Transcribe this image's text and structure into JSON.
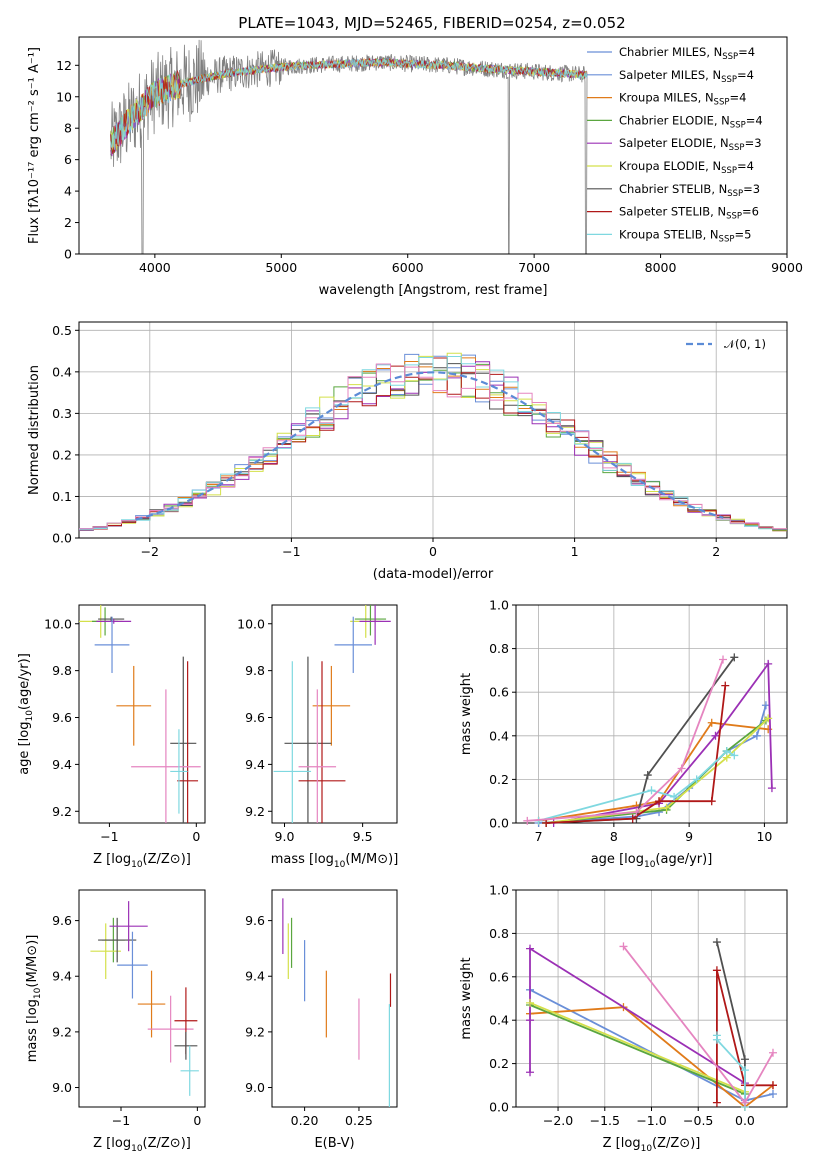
{
  "figure_title": "PLATE=1043, MJD=52465, FIBERID=0254, z=0.052",
  "colors": {
    "Chabrier MILES": "#6a8fd8",
    "Salpeter MILES": "#6a8fd8",
    "Kroupa MILES": "#e07b1a",
    "Chabrier ELODIE": "#5aa63f",
    "Salpeter ELODIE": "#9b30b5",
    "Kroupa ELODIE": "#d4e04a",
    "Chabrier STELIB": "#505050",
    "Salpeter STELIB": "#b01818",
    "Kroupa STELIB": "#7fd8e0",
    "pink": "#e585c0",
    "data": "#808080"
  },
  "chart_data": [
    {
      "id": "spectrum",
      "type": "line",
      "title": "PLATE=1043, MJD=52465, FIBERID=0254, z=0.052",
      "xlabel": "wavelength [Angstrom, rest frame]",
      "ylabel": "Flux [fλ10⁻¹⁷ erg cm⁻² s⁻¹ A⁻¹]",
      "xlim": [
        3400,
        9000
      ],
      "ylim": [
        0,
        13.8
      ],
      "xticks": [
        "4000",
        "5000",
        "6000",
        "7000",
        "8000",
        "9000"
      ],
      "yticks": [
        "0",
        "2",
        "4",
        "6",
        "8",
        "10",
        "12"
      ],
      "grid": false,
      "legend_position": "top-right",
      "legend": [
        "Chabrier MILES, N_SSP=4",
        "Salpeter MILES, N_SSP=4",
        "Kroupa MILES, N_SSP=4",
        "Chabrier ELODIE, N_SSP=4",
        "Salpeter ELODIE, N_SSP=3",
        "Kroupa ELODIE, N_SSP=4",
        "Chabrier STELIB, N_SSP=3",
        "Salpeter STELIB, N_SSP=6",
        "Kroupa STELIB, N_SSP=5"
      ],
      "legend_text": [
        "Chabrier MILES, N",
        "Salpeter MILES, N",
        "Kroupa MILES, N",
        "Chabrier ELODIE, N",
        "Salpeter ELODIE, N",
        "Kroupa ELODIE, N",
        "Chabrier STELIB, N",
        "Salpeter STELIB, N",
        "Kroupa STELIB, N"
      ],
      "legend_sub": "SSP",
      "legend_counts": [
        "=4",
        "=4",
        "=4",
        "=4",
        "=3",
        "=4",
        "=3",
        "=6",
        "=5"
      ],
      "continuum": {
        "x": [
          3650,
          3800,
          4000,
          4200,
          4400,
          4600,
          4800,
          5000,
          5200,
          5500,
          5800,
          6000,
          6300,
          6600,
          7000,
          7400
        ],
        "y": [
          7.0,
          8.5,
          10.2,
          10.8,
          11.2,
          11.5,
          11.7,
          11.9,
          12.0,
          12.1,
          12.2,
          12.1,
          12.0,
          11.8,
          11.6,
          11.4
        ]
      }
    },
    {
      "id": "residuals",
      "type": "histogram",
      "xlabel": "(data-model)/error",
      "ylabel": "Normed distribution",
      "xlim": [
        -2.5,
        2.5
      ],
      "ylim": [
        0,
        0.52
      ],
      "xticks": [
        "−2",
        "−1",
        "0",
        "1",
        "2"
      ],
      "yticks": [
        "0.0",
        "0.1",
        "0.2",
        "0.3",
        "0.4",
        "0.5"
      ],
      "grid": true,
      "legend_position": "top-right",
      "legend": [
        "𝒩(0, 1)"
      ],
      "bin_width": 0.1
    },
    {
      "id": "age_vs_Z",
      "type": "errorbar",
      "xlabel": "Z [log10(Z/Z⊙)]",
      "ylabel": "age [log10(age/yr)]",
      "xlim": [
        -1.35,
        0.1
      ],
      "ylim": [
        9.15,
        10.08
      ],
      "xticks": [
        "−1",
        "0"
      ],
      "yticks": [
        "9.2",
        "9.4",
        "9.6",
        "9.8",
        "10.0"
      ],
      "points": [
        {
          "model": "Kroupa ELODIE",
          "x": -1.1,
          "y": 10.01,
          "xerr": 0.25,
          "yerr": 0.07
        },
        {
          "model": "Chabrier ELODIE",
          "x": -1.05,
          "y": 10.01,
          "xerr": 0.15,
          "yerr": 0.06
        },
        {
          "model": "Chabrier STELIB",
          "x": -0.98,
          "y": 10.02,
          "xerr": 0.15,
          "yerr": 0.01
        },
        {
          "model": "Salpeter ELODIE",
          "x": -0.95,
          "y": 10.01,
          "xerr": 0.2,
          "yerr": 0.01
        },
        {
          "model": "Chabrier MILES",
          "x": -0.97,
          "y": 9.91,
          "xerr": 0.2,
          "yerr": 0.12
        },
        {
          "model": "Kroupa MILES",
          "x": -0.72,
          "y": 9.65,
          "xerr": 0.2,
          "yerr": 0.17
        },
        {
          "model": "Chabrier STELIB",
          "x": -0.15,
          "y": 9.49,
          "xerr": 0.15,
          "yerr": 0.37
        },
        {
          "model": "Salpeter STELIB",
          "x": -0.1,
          "y": 9.33,
          "xerr": 0.12,
          "yerr": 0.51
        },
        {
          "model": "pink",
          "x": -0.35,
          "y": 9.39,
          "xerr": 0.4,
          "yerr": 0.33
        },
        {
          "model": "Kroupa STELIB",
          "x": -0.2,
          "y": 9.37,
          "xerr": 0.1,
          "yerr": 0.18
        }
      ]
    },
    {
      "id": "age_vs_mass",
      "type": "errorbar",
      "xlabel": "mass [log10(M/M⊙)]",
      "xlim": [
        8.92,
        9.72
      ],
      "ylim": [
        9.15,
        10.08
      ],
      "xticks": [
        "9.0",
        "9.5"
      ],
      "yticks": [
        "9.2",
        "9.4",
        "9.6",
        "9.8",
        "10.0"
      ],
      "points": [
        {
          "model": "Kroupa ELODIE",
          "x": 9.52,
          "y": 10.01,
          "xerr": 0.1,
          "yerr": 0.07
        },
        {
          "model": "Chabrier ELODIE",
          "x": 9.55,
          "y": 10.02,
          "xerr": 0.1,
          "yerr": 0.07
        },
        {
          "model": "Salpeter ELODIE",
          "x": 9.58,
          "y": 10.01,
          "xerr": 0.1,
          "yerr": 0.1
        },
        {
          "model": "Chabrier MILES",
          "x": 9.44,
          "y": 9.91,
          "xerr": 0.12,
          "yerr": 0.12
        },
        {
          "model": "Kroupa MILES",
          "x": 9.3,
          "y": 9.65,
          "xerr": 0.12,
          "yerr": 0.17
        },
        {
          "model": "Chabrier STELIB",
          "x": 9.15,
          "y": 9.49,
          "xerr": 0.15,
          "yerr": 0.37
        },
        {
          "model": "Salpeter STELIB",
          "x": 9.24,
          "y": 9.33,
          "xerr": 0.15,
          "yerr": 0.51
        },
        {
          "model": "pink",
          "x": 9.21,
          "y": 9.39,
          "xerr": 0.12,
          "yerr": 0.33
        },
        {
          "model": "Kroupa STELIB",
          "x": 9.05,
          "y": 9.37,
          "xerr": 0.12,
          "yerr": 0.47
        }
      ]
    },
    {
      "id": "weight_vs_age",
      "type": "line",
      "xlabel": "age [log10(age/yr)]",
      "ylabel": "mass weight",
      "xlim": [
        6.7,
        10.3
      ],
      "ylim": [
        0,
        1.0
      ],
      "xticks": [
        "7",
        "8",
        "9",
        "10"
      ],
      "yticks": [
        "0.0",
        "0.2",
        "0.4",
        "0.6",
        "0.8",
        "1.0"
      ],
      "grid": true,
      "series": [
        {
          "model": "Chabrier MILES",
          "x": [
            7.0,
            8.3,
            8.6,
            9.0,
            9.5,
            9.9,
            10.02
          ],
          "y": [
            0.0,
            0.03,
            0.05,
            0.16,
            0.33,
            0.4,
            0.54
          ]
        },
        {
          "model": "Kroupa MILES",
          "x": [
            7.0,
            8.3,
            8.6,
            9.3,
            10.05
          ],
          "y": [
            0.01,
            0.08,
            0.1,
            0.46,
            0.43
          ]
        },
        {
          "model": "Chabrier ELODIE",
          "x": [
            7.1,
            8.7,
            9.5,
            10.02
          ],
          "y": [
            0.0,
            0.06,
            0.33,
            0.47
          ]
        },
        {
          "model": "Salpeter ELODIE",
          "x": [
            7.2,
            8.6,
            9.35,
            10.05,
            10.1
          ],
          "y": [
            0.0,
            0.09,
            0.4,
            0.73,
            0.16
          ]
        },
        {
          "model": "Kroupa ELODIE",
          "x": [
            7.1,
            8.7,
            9.5,
            10.05
          ],
          "y": [
            0.0,
            0.07,
            0.3,
            0.48
          ]
        },
        {
          "model": "Chabrier STELIB",
          "x": [
            7.1,
            8.3,
            8.45,
            9.6
          ],
          "y": [
            0.0,
            0.02,
            0.22,
            0.76
          ]
        },
        {
          "model": "Salpeter STELIB",
          "x": [
            7.1,
            8.25,
            8.6,
            9.3,
            9.48
          ],
          "y": [
            0.0,
            0.02,
            0.1,
            0.1,
            0.63
          ]
        },
        {
          "model": "Kroupa STELIB",
          "x": [
            7.0,
            8.5,
            8.8,
            9.1,
            9.5,
            9.6
          ],
          "y": [
            0.01,
            0.15,
            0.12,
            0.2,
            0.33,
            0.31
          ]
        },
        {
          "model": "pink",
          "x": [
            6.85,
            8.3,
            8.9,
            9.45
          ],
          "y": [
            0.01,
            0.05,
            0.25,
            0.75
          ]
        }
      ]
    },
    {
      "id": "mass_vs_Z",
      "type": "errorbar",
      "xlabel": "Z [log10(Z/Z⊙)]",
      "ylabel": "mass [log10(M/M⊙)]",
      "xlim": [
        -1.55,
        0.1
      ],
      "ylim": [
        8.93,
        9.71
      ],
      "xticks": [
        "−1",
        "0"
      ],
      "yticks": [
        "9.0",
        "9.2",
        "9.4",
        "9.6"
      ],
      "points": [
        {
          "model": "Chabrier ELODIE",
          "x": -1.1,
          "y": 9.53,
          "xerr": 0.15,
          "yerr": 0.08
        },
        {
          "model": "Kroupa ELODIE",
          "x": -1.2,
          "y": 9.49,
          "xerr": 0.2,
          "yerr": 0.1
        },
        {
          "model": "Chabrier STELIB",
          "x": -1.05,
          "y": 9.53,
          "xerr": 0.25,
          "yerr": 0.08
        },
        {
          "model": "Salpeter ELODIE",
          "x": -0.9,
          "y": 9.58,
          "xerr": 0.25,
          "yerr": 0.09
        },
        {
          "model": "Chabrier MILES",
          "x": -0.85,
          "y": 9.44,
          "xerr": 0.2,
          "yerr": 0.12
        },
        {
          "model": "Kroupa MILES",
          "x": -0.6,
          "y": 9.3,
          "xerr": 0.18,
          "yerr": 0.12
        },
        {
          "model": "pink",
          "x": -0.35,
          "y": 9.21,
          "xerr": 0.3,
          "yerr": 0.12
        },
        {
          "model": "Salpeter STELIB",
          "x": -0.15,
          "y": 9.24,
          "xerr": 0.15,
          "yerr": 0.12
        },
        {
          "model": "Chabrier STELIB",
          "x": -0.15,
          "y": 9.15,
          "xerr": 0.15,
          "yerr": 0.05
        },
        {
          "model": "Kroupa STELIB",
          "x": -0.1,
          "y": 9.06,
          "xerr": 0.12,
          "yerr": 0.09
        }
      ]
    },
    {
      "id": "mass_vs_ebv",
      "type": "errorbar",
      "xlabel": "E(B-V)",
      "xlim": [
        0.17,
        0.285
      ],
      "ylim": [
        8.93,
        9.71
      ],
      "xticks": [
        "0.20",
        "0.25"
      ],
      "yticks": [
        "9.0",
        "9.2",
        "9.4",
        "9.6"
      ],
      "points": [
        {
          "model": "Salpeter ELODIE",
          "x": 0.18,
          "y": 9.58,
          "xerr": 0,
          "yerr": 0.1
        },
        {
          "model": "Kroupa ELODIE",
          "x": 0.185,
          "y": 9.49,
          "xerr": 0,
          "yerr": 0.1
        },
        {
          "model": "Chabrier ELODIE",
          "x": 0.188,
          "y": 9.52,
          "xerr": 0,
          "yerr": 0.09
        },
        {
          "model": "Chabrier MILES",
          "x": 0.2,
          "y": 9.42,
          "xerr": 0,
          "yerr": 0.11
        },
        {
          "model": "Kroupa MILES",
          "x": 0.22,
          "y": 9.3,
          "xerr": 0,
          "yerr": 0.12
        },
        {
          "model": "pink",
          "x": 0.25,
          "y": 9.21,
          "xerr": 0,
          "yerr": 0.11
        },
        {
          "model": "Salpeter STELIB",
          "x": 0.279,
          "y": 9.35,
          "xerr": 0,
          "yerr": 0.06
        },
        {
          "model": "Kroupa STELIB",
          "x": 0.278,
          "y": 9.1,
          "xerr": 0,
          "yerr": 0.2
        }
      ]
    },
    {
      "id": "weight_vs_Z",
      "type": "line",
      "xlabel": "Z [log10(Z/Z⊙)]",
      "ylabel": "mass weight",
      "xlim": [
        -2.45,
        0.45
      ],
      "ylim": [
        0,
        1.0
      ],
      "xticks": [
        "−2.0",
        "−1.5",
        "−1.0",
        "−0.5",
        "0.0"
      ],
      "yticks": [
        "0.0",
        "0.2",
        "0.4",
        "0.6",
        "0.8",
        "1.0"
      ],
      "grid": true,
      "series": [
        {
          "model": "Chabrier MILES",
          "x": [
            -2.3,
            0.0,
            0.3
          ],
          "y": [
            0.54,
            0.03,
            0.06
          ]
        },
        {
          "model": "Kroupa MILES",
          "x": [
            -2.3,
            -1.3,
            0.0,
            0.3
          ],
          "y": [
            0.43,
            0.46,
            0.0,
            0.1
          ]
        },
        {
          "model": "Chabrier ELODIE",
          "x": [
            -2.3,
            0.0
          ],
          "y": [
            0.47,
            0.06
          ]
        },
        {
          "model": "Salpeter ELODIE",
          "x": [
            -2.3,
            -2.3,
            -2.3,
            0.0
          ],
          "y": [
            0.16,
            0.4,
            0.73,
            0.11
          ]
        },
        {
          "model": "Kroupa ELODIE",
          "x": [
            -2.3,
            0.0
          ],
          "y": [
            0.48,
            0.07
          ]
        },
        {
          "model": "Chabrier STELIB",
          "x": [
            -0.3,
            0.0,
            0.0
          ],
          "y": [
            0.76,
            0.22,
            0.02
          ]
        },
        {
          "model": "Salpeter STELIB",
          "x": [
            -0.3,
            -0.3,
            0.0,
            0.3
          ],
          "y": [
            0.02,
            0.63,
            0.1,
            0.1
          ]
        },
        {
          "model": "Kroupa STELIB",
          "x": [
            -0.3,
            -0.3,
            0.0,
            0.0
          ],
          "y": [
            0.33,
            0.31,
            0.17,
            0.0
          ]
        },
        {
          "model": "pink",
          "x": [
            -1.3,
            0.0,
            0.3
          ],
          "y": [
            0.74,
            0.02,
            0.25
          ]
        }
      ]
    }
  ]
}
